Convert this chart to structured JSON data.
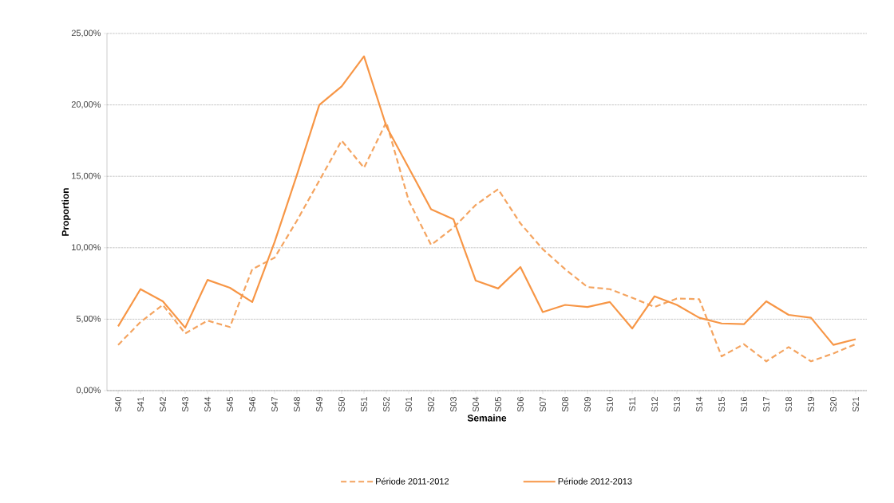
{
  "chart_data": {
    "type": "line",
    "xlabel": "Semaine",
    "ylabel": "Proportion",
    "categories": [
      "S40",
      "S41",
      "S42",
      "S43",
      "S44",
      "S45",
      "S46",
      "S47",
      "S48",
      "S49",
      "S50",
      "S51",
      "S52",
      "S01",
      "S02",
      "S03",
      "S04",
      "S05",
      "S06",
      "S07",
      "S08",
      "S09",
      "S10",
      "S11",
      "S12",
      "S13",
      "S14",
      "S15",
      "S16",
      "S17",
      "S18",
      "S19",
      "S20",
      "S21"
    ],
    "series": [
      {
        "name": "Période 2011-2012",
        "color": "#f4a460",
        "line_style": "dashed",
        "values": [
          3.2,
          4.8,
          6.0,
          4.0,
          4.9,
          4.45,
          8.5,
          9.3,
          11.9,
          14.7,
          17.5,
          15.6,
          18.8,
          13.3,
          10.2,
          11.4,
          13.0,
          14.1,
          11.7,
          9.9,
          8.5,
          7.25,
          7.1,
          6.5,
          5.85,
          6.45,
          6.4,
          2.4,
          3.25,
          2.05,
          3.05,
          2.05,
          2.6,
          3.25
        ]
      },
      {
        "name": "Période 2012-2013",
        "color": "#f79646",
        "line_style": "solid",
        "values": [
          4.5,
          7.1,
          6.25,
          4.4,
          7.75,
          7.2,
          6.2,
          10.4,
          15.1,
          20.0,
          21.3,
          23.4,
          18.5,
          15.6,
          12.7,
          12.0,
          7.7,
          7.15,
          8.65,
          5.5,
          6.0,
          5.85,
          6.2,
          4.35,
          6.6,
          6.0,
          5.1,
          4.7,
          4.65,
          6.25,
          5.3,
          5.1,
          3.2,
          3.6
        ]
      }
    ],
    "ylim": [
      0,
      25
    ],
    "yticks": [
      {
        "value": 0,
        "label": "0,00%"
      },
      {
        "value": 5,
        "label": "5,00%"
      },
      {
        "value": 10,
        "label": "10,00%"
      },
      {
        "value": 15,
        "label": "15,00%"
      },
      {
        "value": 20,
        "label": "20,00%"
      },
      {
        "value": 25,
        "label": "25,00%"
      }
    ],
    "grid": "y",
    "legend": "bottom",
    "marker": "none"
  }
}
